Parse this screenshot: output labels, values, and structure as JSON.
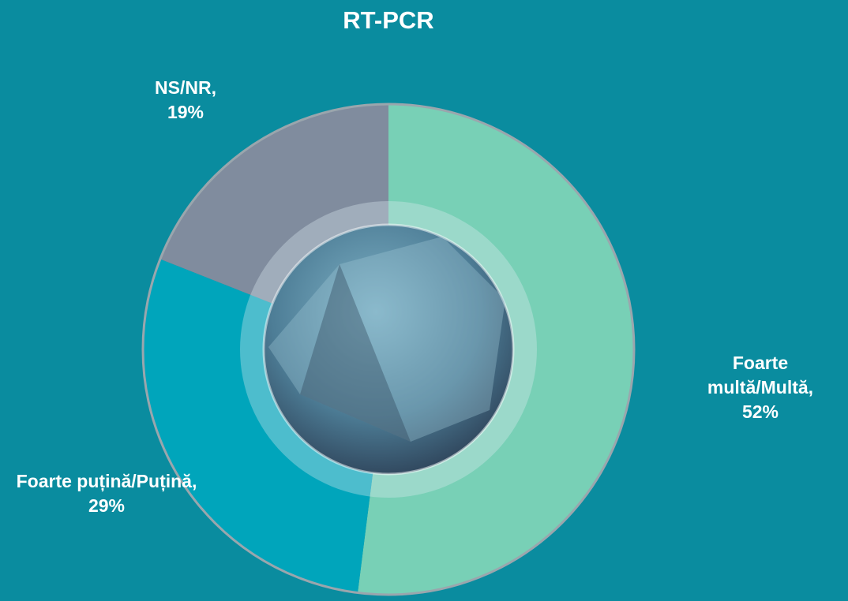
{
  "chart_data": {
    "type": "pie",
    "title": "RT-PCR",
    "categories": [
      "Foarte multă/Multă,",
      "Foarte puțină/Puțină,",
      "NS/NR,"
    ],
    "values": [
      52,
      29,
      19
    ],
    "value_labels": [
      "52%",
      "29%",
      "19%"
    ],
    "colors": [
      "#78d0b6",
      "#00a5bb",
      "#808c9e"
    ]
  }
}
